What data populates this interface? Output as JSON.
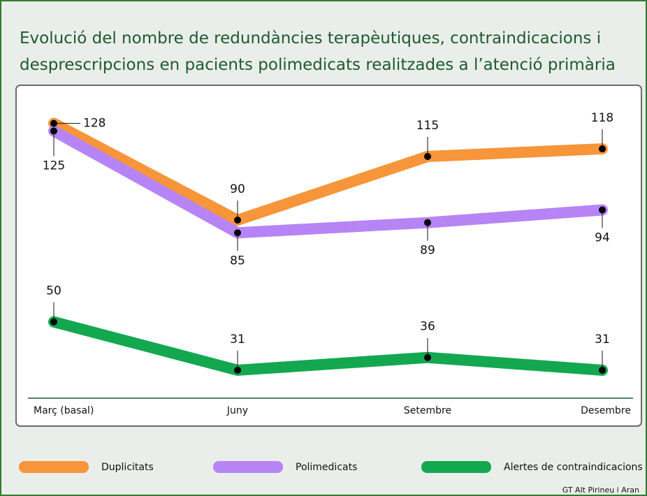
{
  "chart_data": {
    "type": "line",
    "title": "Evolució del nombre de redundàncies terapèutiques, contraindicacions i desprescripcions en pacients polimedicats realitzades a l’atenció primària",
    "categories": [
      "Març (basal)",
      "Juny",
      "Setembre",
      "Desembre"
    ],
    "series": [
      {
        "name": "Duplicitats",
        "color": "#f7953a",
        "values": [
          128,
          90,
          115,
          118
        ]
      },
      {
        "name": "Polimedicats",
        "color": "#b784f5",
        "values": [
          125,
          85,
          89,
          94
        ]
      },
      {
        "name": "Alertes de contraindicacions",
        "color": "#13a850",
        "values": [
          50,
          31,
          36,
          31
        ]
      }
    ],
    "ylim": [
      20,
      143
    ],
    "source": "GT Alt Pirineu i Aran"
  }
}
